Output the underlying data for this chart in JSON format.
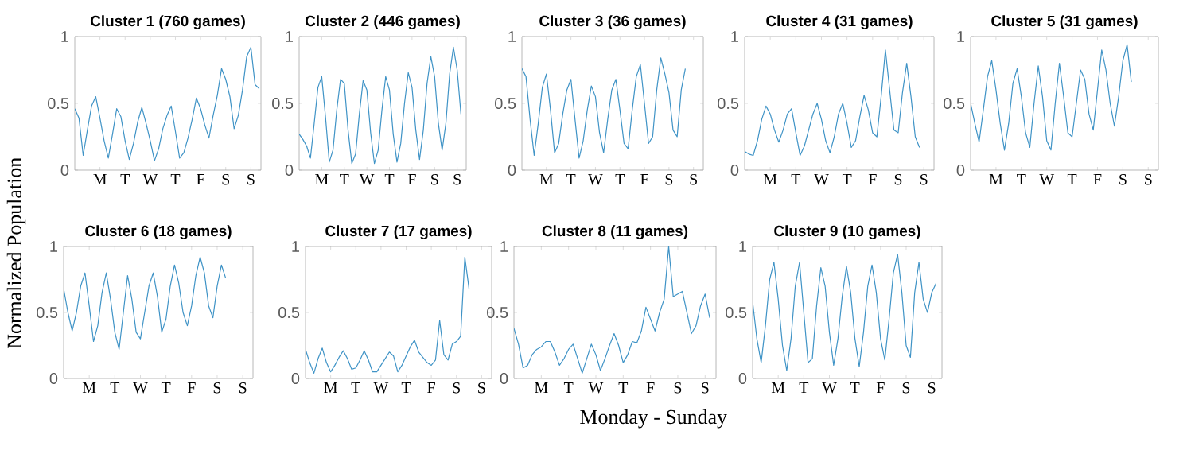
{
  "chart_data": [
    {
      "type": "line",
      "title": "Cluster 1 (760 games)",
      "color": "#3f93c6",
      "ylim": [
        0,
        1
      ],
      "yticks": [
        0,
        0.5,
        1
      ],
      "categories": [
        null,
        null,
        null,
        null,
        null,
        null,
        "M",
        null,
        null,
        null,
        null,
        null,
        "T",
        null,
        null,
        null,
        null,
        null,
        "W",
        null,
        null,
        null,
        null,
        null,
        "T",
        null,
        null,
        null,
        null,
        null,
        "F",
        null,
        null,
        null,
        null,
        null,
        "S",
        null,
        null,
        null,
        null,
        null,
        "S",
        null,
        null
      ],
      "values": [
        0.46,
        0.39,
        0.11,
        0.3,
        0.48,
        0.55,
        0.39,
        0.22,
        0.09,
        0.27,
        0.46,
        0.4,
        0.22,
        0.08,
        0.2,
        0.36,
        0.47,
        0.35,
        0.22,
        0.07,
        0.16,
        0.31,
        0.41,
        0.48,
        0.29,
        0.09,
        0.13,
        0.24,
        0.38,
        0.54,
        0.46,
        0.34,
        0.24,
        0.41,
        0.56,
        0.76,
        0.68,
        0.55,
        0.31,
        0.41,
        0.6,
        0.85,
        0.92,
        0.64,
        0.61
      ]
    },
    {
      "type": "line",
      "title": "Cluster 2 (446 games)",
      "color": "#3f93c6",
      "ylim": [
        0,
        1
      ],
      "yticks": [
        0,
        0.5,
        1
      ],
      "categories": [
        null,
        null,
        null,
        null,
        null,
        null,
        "M",
        null,
        null,
        null,
        null,
        null,
        "T",
        null,
        null,
        null,
        null,
        null,
        "W",
        null,
        null,
        null,
        null,
        null,
        "T",
        null,
        null,
        null,
        null,
        null,
        "F",
        null,
        null,
        null,
        null,
        null,
        "S",
        null,
        null,
        null,
        null,
        null,
        "S",
        null,
        null
      ],
      "values": [
        0.27,
        0.23,
        0.18,
        0.09,
        0.35,
        0.62,
        0.7,
        0.4,
        0.06,
        0.15,
        0.45,
        0.68,
        0.65,
        0.3,
        0.05,
        0.12,
        0.42,
        0.67,
        0.6,
        0.28,
        0.05,
        0.15,
        0.45,
        0.7,
        0.6,
        0.27,
        0.06,
        0.2,
        0.5,
        0.73,
        0.62,
        0.3,
        0.08,
        0.3,
        0.65,
        0.85,
        0.7,
        0.35,
        0.15,
        0.35,
        0.72,
        0.92,
        0.75,
        0.42,
        null
      ]
    },
    {
      "type": "line",
      "title": "Cluster 3 (36 games)",
      "color": "#3f93c6",
      "ylim": [
        0,
        1
      ],
      "yticks": [
        0,
        0.5,
        1
      ],
      "categories": [
        null,
        null,
        null,
        null,
        null,
        null,
        "M",
        null,
        null,
        null,
        null,
        null,
        "T",
        null,
        null,
        null,
        null,
        null,
        "W",
        null,
        null,
        null,
        null,
        null,
        "T",
        null,
        null,
        null,
        null,
        null,
        "F",
        null,
        null,
        null,
        null,
        null,
        "S",
        null,
        null,
        null,
        null,
        null,
        "S",
        null,
        null
      ],
      "values": [
        0.76,
        0.7,
        0.38,
        0.11,
        0.35,
        0.62,
        0.72,
        0.45,
        0.13,
        0.2,
        0.42,
        0.6,
        0.68,
        0.38,
        0.09,
        0.22,
        0.45,
        0.63,
        0.55,
        0.28,
        0.13,
        0.38,
        0.6,
        0.68,
        0.45,
        0.2,
        0.16,
        0.45,
        0.7,
        0.79,
        0.5,
        0.2,
        0.25,
        0.6,
        0.84,
        0.72,
        0.58,
        0.3,
        0.25,
        0.6,
        0.76,
        null,
        null,
        null,
        null
      ]
    },
    {
      "type": "line",
      "title": "Cluster 4 (31 games)",
      "color": "#3f93c6",
      "ylim": [
        0,
        1
      ],
      "yticks": [
        0,
        0.5,
        1
      ],
      "categories": [
        null,
        null,
        null,
        null,
        null,
        null,
        "M",
        null,
        null,
        null,
        null,
        null,
        "T",
        null,
        null,
        null,
        null,
        null,
        "W",
        null,
        null,
        null,
        null,
        null,
        "T",
        null,
        null,
        null,
        null,
        null,
        "F",
        null,
        null,
        null,
        null,
        null,
        "S",
        null,
        null,
        null,
        null,
        null,
        "S",
        null,
        null
      ],
      "values": [
        0.14,
        0.12,
        0.11,
        0.22,
        0.38,
        0.48,
        0.42,
        0.3,
        0.21,
        0.3,
        0.42,
        0.46,
        0.28,
        0.11,
        0.18,
        0.3,
        0.42,
        0.5,
        0.38,
        0.22,
        0.13,
        0.25,
        0.42,
        0.5,
        0.35,
        0.17,
        0.22,
        0.4,
        0.56,
        0.45,
        0.28,
        0.25,
        0.55,
        0.9,
        0.6,
        0.3,
        0.28,
        0.58,
        0.8,
        0.55,
        0.25,
        0.17,
        null,
        null,
        null
      ]
    },
    {
      "type": "line",
      "title": "Cluster 5 (31 games)",
      "color": "#3f93c6",
      "ylim": [
        0,
        1
      ],
      "yticks": [
        0,
        0.5,
        1
      ],
      "categories": [
        null,
        null,
        null,
        null,
        null,
        null,
        "M",
        null,
        null,
        null,
        null,
        null,
        "T",
        null,
        null,
        null,
        null,
        null,
        "W",
        null,
        null,
        null,
        null,
        null,
        "T",
        null,
        null,
        null,
        null,
        null,
        "F",
        null,
        null,
        null,
        null,
        null,
        "S",
        null,
        null,
        null,
        null,
        null,
        "S",
        null,
        null
      ],
      "values": [
        0.5,
        0.35,
        0.21,
        0.45,
        0.7,
        0.82,
        0.6,
        0.35,
        0.15,
        0.35,
        0.65,
        0.76,
        0.55,
        0.28,
        0.17,
        0.5,
        0.78,
        0.55,
        0.22,
        0.15,
        0.5,
        0.8,
        0.55,
        0.28,
        0.25,
        0.5,
        0.75,
        0.68,
        0.42,
        0.3,
        0.6,
        0.9,
        0.75,
        0.5,
        0.33,
        0.55,
        0.82,
        0.94,
        0.66,
        null,
        null,
        null,
        null,
        null,
        null
      ]
    },
    {
      "type": "line",
      "title": "Cluster 6 (18 games)",
      "ylabel": "Normalized Population",
      "color": "#3f93c6",
      "ylim": [
        0,
        1
      ],
      "yticks": [
        0,
        0.5,
        1
      ],
      "categories": [
        null,
        null,
        null,
        null,
        null,
        null,
        "M",
        null,
        null,
        null,
        null,
        null,
        "T",
        null,
        null,
        null,
        null,
        null,
        "W",
        null,
        null,
        null,
        null,
        null,
        "T",
        null,
        null,
        null,
        null,
        null,
        "F",
        null,
        null,
        null,
        null,
        null,
        "S",
        null,
        null,
        null,
        null,
        null,
        "S",
        null,
        null
      ],
      "values": [
        0.68,
        0.5,
        0.36,
        0.5,
        0.7,
        0.8,
        0.55,
        0.28,
        0.4,
        0.65,
        0.8,
        0.6,
        0.35,
        0.22,
        0.5,
        0.78,
        0.6,
        0.35,
        0.3,
        0.5,
        0.7,
        0.8,
        0.62,
        0.35,
        0.45,
        0.7,
        0.86,
        0.72,
        0.5,
        0.4,
        0.55,
        0.78,
        0.92,
        0.8,
        0.55,
        0.46,
        0.7,
        0.86,
        0.76,
        null,
        null,
        null,
        null,
        null,
        null
      ]
    },
    {
      "type": "line",
      "title": "Cluster 7 (17 games)",
      "color": "#3f93c6",
      "ylim": [
        0,
        1
      ],
      "yticks": [
        0,
        0.5,
        1
      ],
      "categories": [
        null,
        null,
        null,
        null,
        null,
        null,
        "M",
        null,
        null,
        null,
        null,
        null,
        "T",
        null,
        null,
        null,
        null,
        null,
        "W",
        null,
        null,
        null,
        null,
        null,
        "T",
        null,
        null,
        null,
        null,
        null,
        "F",
        null,
        null,
        null,
        null,
        null,
        "S",
        null,
        null,
        null,
        null,
        null,
        "S",
        null,
        null
      ],
      "values": [
        0.22,
        0.12,
        0.04,
        0.15,
        0.23,
        0.12,
        0.05,
        0.1,
        0.16,
        0.21,
        0.15,
        0.07,
        0.08,
        0.14,
        0.21,
        0.14,
        0.05,
        0.05,
        0.1,
        0.15,
        0.2,
        0.17,
        0.05,
        0.1,
        0.17,
        0.24,
        0.29,
        0.2,
        0.16,
        0.12,
        0.1,
        0.14,
        0.44,
        0.18,
        0.14,
        0.26,
        0.28,
        0.32,
        0.92,
        0.68,
        null,
        null,
        null,
        null,
        null
      ]
    },
    {
      "type": "line",
      "title": "Cluster 8 (11 games)",
      "xlabel": "Monday - Sunday",
      "color": "#3f93c6",
      "ylim": [
        0,
        1
      ],
      "yticks": [
        0,
        0.5,
        1
      ],
      "categories": [
        null,
        null,
        null,
        null,
        null,
        null,
        "M",
        null,
        null,
        null,
        null,
        null,
        "T",
        null,
        null,
        null,
        null,
        null,
        "W",
        null,
        null,
        null,
        null,
        null,
        "T",
        null,
        null,
        null,
        null,
        null,
        "F",
        null,
        null,
        null,
        null,
        null,
        "S",
        null,
        null,
        null,
        null,
        null,
        "S",
        null,
        null
      ],
      "values": [
        0.38,
        0.26,
        0.08,
        0.1,
        0.18,
        0.22,
        0.24,
        0.28,
        0.28,
        0.2,
        0.1,
        0.15,
        0.22,
        0.26,
        0.15,
        0.04,
        0.15,
        0.26,
        0.18,
        0.06,
        0.15,
        0.25,
        0.34,
        0.25,
        0.12,
        0.18,
        0.28,
        0.27,
        0.36,
        0.54,
        0.45,
        0.36,
        0.5,
        0.6,
        1.0,
        0.62,
        0.64,
        0.66,
        0.5,
        0.34,
        0.4,
        0.55,
        0.64,
        0.46,
        null
      ]
    },
    {
      "type": "line",
      "title": "Cluster 9 (10 games)",
      "color": "#3f93c6",
      "ylim": [
        0,
        1
      ],
      "yticks": [
        0,
        0.5,
        1
      ],
      "categories": [
        null,
        null,
        null,
        null,
        null,
        null,
        "M",
        null,
        null,
        null,
        null,
        null,
        "T",
        null,
        null,
        null,
        null,
        null,
        "W",
        null,
        null,
        null,
        null,
        null,
        "T",
        null,
        null,
        null,
        null,
        null,
        "F",
        null,
        null,
        null,
        null,
        null,
        "S",
        null,
        null,
        null,
        null,
        null,
        "S",
        null,
        null
      ],
      "values": [
        0.58,
        0.3,
        0.12,
        0.4,
        0.75,
        0.88,
        0.6,
        0.25,
        0.06,
        0.3,
        0.7,
        0.88,
        0.5,
        0.12,
        0.15,
        0.55,
        0.84,
        0.7,
        0.35,
        0.1,
        0.3,
        0.62,
        0.85,
        0.65,
        0.3,
        0.09,
        0.35,
        0.7,
        0.86,
        0.65,
        0.3,
        0.14,
        0.45,
        0.8,
        0.94,
        0.65,
        0.25,
        0.16,
        0.65,
        0.88,
        0.6,
        0.5,
        0.65,
        0.72,
        null
      ]
    }
  ]
}
